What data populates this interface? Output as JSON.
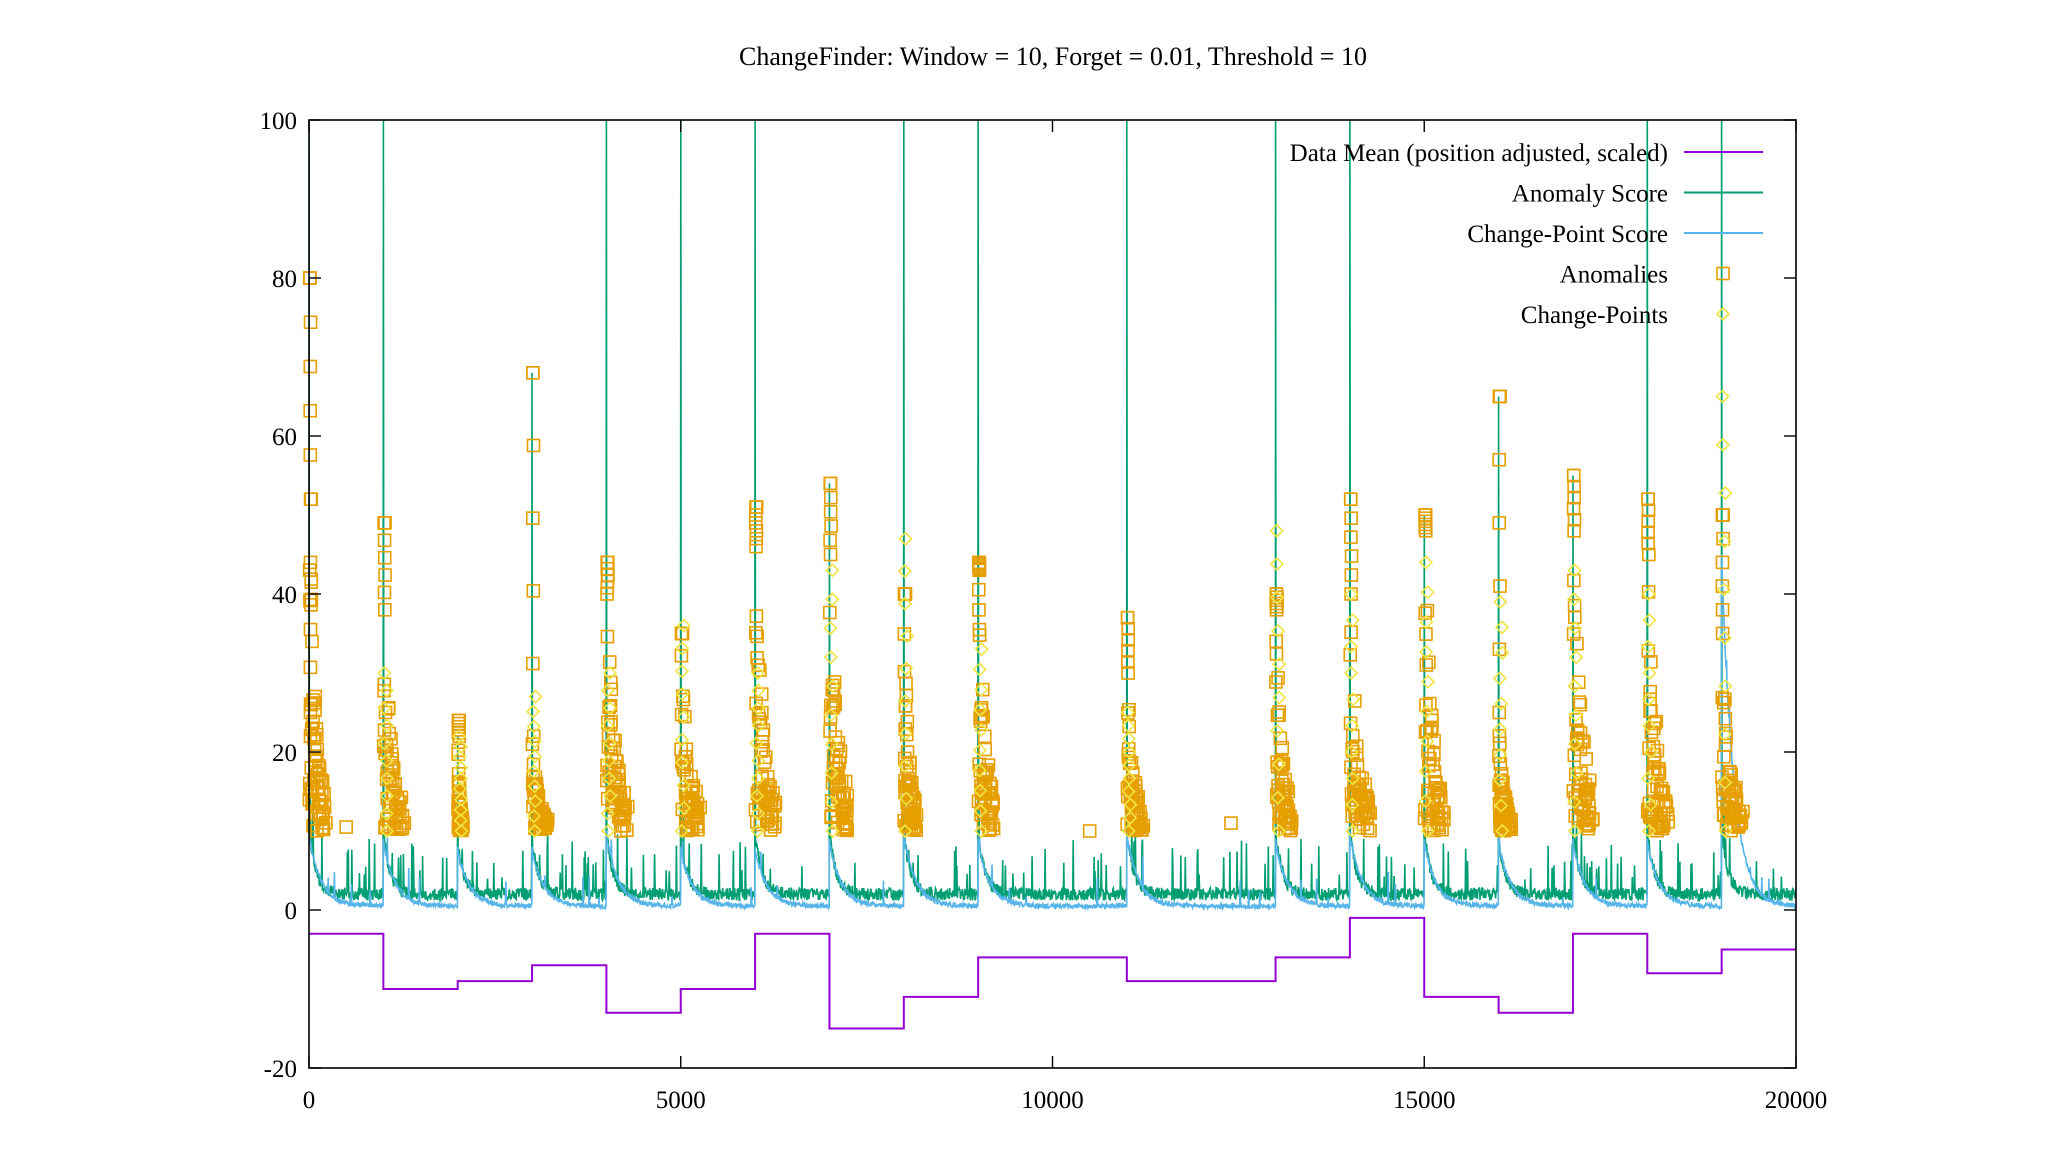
{
  "chart_data": {
    "type": "line",
    "title": "ChangeFinder: Window = 10, Forget = 0.01, Threshold = 10",
    "xlabel": "",
    "ylabel": "",
    "xlim": [
      0,
      20000
    ],
    "ylim": [
      -20,
      100
    ],
    "x_ticks": [
      0,
      5000,
      10000,
      15000,
      20000
    ],
    "y_ticks": [
      -20,
      0,
      20,
      40,
      60,
      80,
      100
    ],
    "x_tick_labels": [
      "0",
      "5000",
      "10000",
      "15000",
      "20000"
    ],
    "y_tick_labels": [
      "-20",
      "0",
      "20",
      "40",
      "60",
      "80",
      "100"
    ],
    "grid": false,
    "legend_position": "top-right",
    "colors": {
      "data_mean": "#9400D3",
      "anomaly_score": "#009E73",
      "change_point_score": "#56B4E9",
      "anomalies": "#E69F00",
      "change_points": "#F0E442"
    },
    "legend": [
      {
        "label": "Data Mean (position adjusted, scaled)",
        "style": "line",
        "color_key": "data_mean"
      },
      {
        "label": "Anomaly Score",
        "style": "line",
        "color_key": "anomaly_score"
      },
      {
        "label": "Change-Point Score",
        "style": "line",
        "color_key": "change_point_score"
      },
      {
        "label": "Anomalies",
        "style": "square",
        "color_key": "anomalies"
      },
      {
        "label": "Change-Points",
        "style": "diamond",
        "color_key": "change_points"
      }
    ],
    "data_mean_steps": [
      {
        "x_start": 0,
        "x_end": 1000,
        "y": -3
      },
      {
        "x_start": 1000,
        "x_end": 2000,
        "y": -10
      },
      {
        "x_start": 2000,
        "x_end": 3000,
        "y": -9
      },
      {
        "x_start": 3000,
        "x_end": 4000,
        "y": -7
      },
      {
        "x_start": 4000,
        "x_end": 5000,
        "y": -13
      },
      {
        "x_start": 5000,
        "x_end": 6000,
        "y": -10
      },
      {
        "x_start": 6000,
        "x_end": 7000,
        "y": -3
      },
      {
        "x_start": 7000,
        "x_end": 8000,
        "y": -15
      },
      {
        "x_start": 8000,
        "x_end": 9000,
        "y": -11
      },
      {
        "x_start": 9000,
        "x_end": 11000,
        "y": -6
      },
      {
        "x_start": 11000,
        "x_end": 13000,
        "y": -9
      },
      {
        "x_start": 13000,
        "x_end": 14000,
        "y": -6
      },
      {
        "x_start": 14000,
        "x_end": 15000,
        "y": -1
      },
      {
        "x_start": 15000,
        "x_end": 16000,
        "y": -11
      },
      {
        "x_start": 16000,
        "x_end": 17000,
        "y": -13
      },
      {
        "x_start": 17000,
        "x_end": 18000,
        "y": -3
      },
      {
        "x_start": 18000,
        "x_end": 19000,
        "y": -8
      },
      {
        "x_start": 19000,
        "x_end": 20000,
        "y": -5
      }
    ],
    "segments": [
      {
        "x": 0,
        "anomaly_peak": 100,
        "decay_peak": 10,
        "cp_peak": 10,
        "cluster_top": 52,
        "cluster_end": 200,
        "top_anomaly": 80,
        "max_cp": 0
      },
      {
        "x": 1000,
        "anomaly_peak": 100,
        "decay_peak": 10,
        "cp_peak": 9,
        "cluster_top": 38,
        "cluster_end": 250,
        "top_anomaly": 49,
        "max_cp": 30
      },
      {
        "x": 2000,
        "anomaly_peak": 22,
        "decay_peak": 8,
        "cp_peak": 8,
        "cluster_top": 22,
        "cluster_end": 60,
        "top_anomaly": 24,
        "max_cp": 22
      },
      {
        "x": 3000,
        "anomaly_peak": 68,
        "decay_peak": 9,
        "cp_peak": 8,
        "cluster_top": 22,
        "cluster_end": 200,
        "top_anomaly": 68,
        "max_cp": 27
      },
      {
        "x": 4000,
        "anomaly_peak": 100,
        "decay_peak": 10,
        "cp_peak": 10,
        "cluster_top": 40,
        "cluster_end": 250,
        "top_anomaly": 44,
        "max_cp": 30
      },
      {
        "x": 5000,
        "anomaly_peak": 100,
        "decay_peak": 9,
        "cp_peak": 8,
        "cluster_top": 35,
        "cluster_end": 250,
        "top_anomaly": 35,
        "max_cp": 36
      },
      {
        "x": 6000,
        "anomaly_peak": 100,
        "decay_peak": 10,
        "cp_peak": 8,
        "cluster_top": 46,
        "cluster_end": 250,
        "top_anomaly": 51,
        "max_cp": 30
      },
      {
        "x": 7000,
        "anomaly_peak": 54,
        "decay_peak": 10,
        "cp_peak": 9,
        "cluster_top": 45,
        "cluster_end": 250,
        "top_anomaly": 54,
        "max_cp": 43
      },
      {
        "x": 8000,
        "anomaly_peak": 100,
        "decay_peak": 10,
        "cp_peak": 10,
        "cluster_top": 40,
        "cluster_end": 150,
        "top_anomaly": 40,
        "max_cp": 47
      },
      {
        "x": 9000,
        "anomaly_peak": 100,
        "decay_peak": 10,
        "cp_peak": 9,
        "cluster_top": 43,
        "cluster_end": 200,
        "top_anomaly": 44,
        "max_cp": 33
      },
      {
        "x": 11000,
        "anomaly_peak": 100,
        "decay_peak": 10,
        "cp_peak": 10,
        "cluster_top": 30,
        "cluster_end": 200,
        "top_anomaly": 37,
        "max_cp": 25
      },
      {
        "x": 13000,
        "anomaly_peak": 100,
        "decay_peak": 10,
        "cp_peak": 9,
        "cluster_top": 38,
        "cluster_end": 200,
        "top_anomaly": 40,
        "max_cp": 48
      },
      {
        "x": 14000,
        "anomaly_peak": 100,
        "decay_peak": 10,
        "cp_peak": 10,
        "cluster_top": 40,
        "cluster_end": 250,
        "top_anomaly": 52,
        "max_cp": 40
      },
      {
        "x": 15000,
        "anomaly_peak": 50,
        "decay_peak": 10,
        "cp_peak": 9,
        "cluster_top": 48,
        "cluster_end": 250,
        "top_anomaly": 50,
        "max_cp": 44
      },
      {
        "x": 16000,
        "anomaly_peak": 65,
        "decay_peak": 9,
        "cp_peak": 9,
        "cluster_top": 25,
        "cluster_end": 150,
        "top_anomaly": 65,
        "max_cp": 39
      },
      {
        "x": 17000,
        "anomaly_peak": 55,
        "decay_peak": 10,
        "cp_peak": 9,
        "cluster_top": 48,
        "cluster_end": 250,
        "top_anomaly": 55,
        "max_cp": 43
      },
      {
        "x": 18000,
        "anomaly_peak": 100,
        "decay_peak": 10,
        "cp_peak": 9,
        "cluster_top": 45,
        "cluster_end": 250,
        "top_anomaly": 52,
        "max_cp": 40
      },
      {
        "x": 19000,
        "anomaly_peak": 100,
        "decay_peak": 10,
        "cp_peak": 45,
        "cluster_top": 35,
        "cluster_end": 250,
        "top_anomaly": 50,
        "max_cp": 65
      }
    ],
    "isolated_anomalies": [
      {
        "x": 500,
        "y": 10.5
      },
      {
        "x": 10500,
        "y": 10
      },
      {
        "x": 12400,
        "y": 11
      },
      {
        "x": 19200,
        "y": 14
      },
      {
        "x": 30,
        "y": 52
      },
      {
        "x": 20,
        "y": 44
      },
      {
        "x": 30,
        "y": 41.5
      },
      {
        "x": 20,
        "y": 35.5
      },
      {
        "x": 40,
        "y": 34
      },
      {
        "x": 30,
        "y": 26
      },
      {
        "x": 20,
        "y": 25
      },
      {
        "x": 40,
        "y": 23
      },
      {
        "x": 20,
        "y": 22
      },
      {
        "x": 30,
        "y": 18
      },
      {
        "x": 10,
        "y": 16
      }
    ]
  }
}
